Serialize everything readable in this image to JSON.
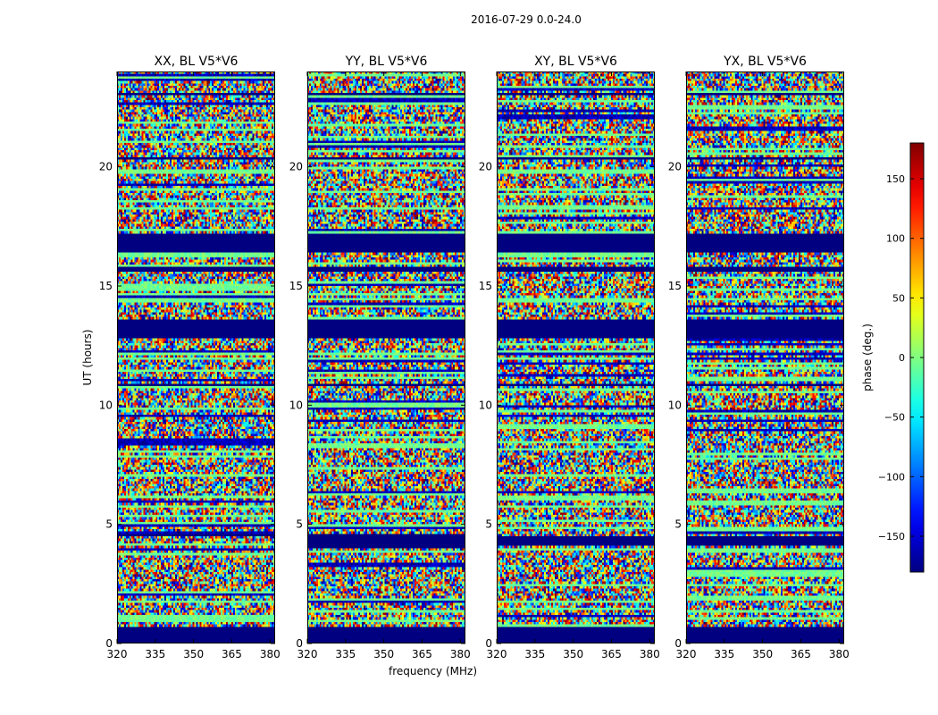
{
  "figure": {
    "suptitle": "2016-07-29 0.0-24.0"
  },
  "chart_data": [
    {
      "type": "heatmap",
      "title": "XX, BL V5*V6",
      "xlabel": "",
      "ylabel": "UT (hours)",
      "xlim": [
        320,
        382
      ],
      "ylim": [
        0,
        24
      ],
      "xticks": [
        "320",
        "335",
        "350",
        "365",
        "380"
      ],
      "yticks": [
        "0",
        "5",
        "10",
        "15",
        "20"
      ],
      "flagged_ut_ranges": [
        [
          0.0,
          0.7
        ],
        [
          4.5,
          4.6
        ],
        [
          10.8,
          10.9
        ],
        [
          12.8,
          13.6
        ],
        [
          15.6,
          15.8
        ],
        [
          16.4,
          17.2
        ],
        [
          20.3,
          20.4
        ],
        [
          23.0,
          23.1
        ]
      ]
    },
    {
      "type": "heatmap",
      "title": "YY, BL V5*V6",
      "xlabel": "frequency (MHz)",
      "ylabel": "",
      "xlim": [
        320,
        382
      ],
      "ylim": [
        0,
        24
      ],
      "xticks": [
        "320",
        "335",
        "350",
        "365",
        "380"
      ],
      "yticks": [
        "0",
        "5",
        "10",
        "15",
        "20"
      ],
      "flagged_ut_ranges": [
        [
          0.0,
          0.7
        ],
        [
          4.0,
          4.6
        ],
        [
          10.8,
          10.9
        ],
        [
          12.8,
          13.6
        ],
        [
          15.6,
          15.8
        ],
        [
          16.4,
          17.2
        ],
        [
          20.3,
          20.4
        ],
        [
          23.0,
          23.1
        ]
      ]
    },
    {
      "type": "heatmap",
      "title": "XY, BL V5*V6",
      "xlabel": "",
      "ylabel": "",
      "xlim": [
        320,
        382
      ],
      "ylim": [
        0,
        24
      ],
      "xticks": [
        "320",
        "335",
        "350",
        "365",
        "380"
      ],
      "yticks": [
        "0",
        "5",
        "10",
        "15",
        "20"
      ],
      "flagged_ut_ranges": [
        [
          0.0,
          0.7
        ],
        [
          4.1,
          4.5
        ],
        [
          10.8,
          10.9
        ],
        [
          12.8,
          13.6
        ],
        [
          15.6,
          15.8
        ],
        [
          16.4,
          17.2
        ],
        [
          20.3,
          20.4
        ],
        [
          23.0,
          23.1
        ]
      ]
    },
    {
      "type": "heatmap",
      "title": "YX, BL V5*V6",
      "xlabel": "",
      "ylabel": "",
      "xlim": [
        320,
        382
      ],
      "ylim": [
        0,
        24
      ],
      "xticks": [
        "320",
        "335",
        "350",
        "365",
        "380"
      ],
      "yticks": [
        "0",
        "5",
        "10",
        "15",
        "20"
      ],
      "flagged_ut_ranges": [
        [
          0.0,
          0.7
        ],
        [
          4.1,
          4.5
        ],
        [
          10.8,
          10.9
        ],
        [
          12.8,
          13.6
        ],
        [
          15.6,
          15.8
        ],
        [
          16.4,
          17.2
        ],
        [
          20.3,
          20.4
        ],
        [
          23.0,
          23.1
        ]
      ]
    }
  ],
  "colorbar": {
    "label": "phase (deg.)",
    "colormap": "jet",
    "range": [
      -180,
      180
    ],
    "ticks": [
      "150",
      "100",
      "50",
      "0",
      "−50",
      "−100",
      "−150"
    ],
    "tick_values": [
      150,
      100,
      50,
      0,
      -50,
      -100,
      -150
    ]
  }
}
